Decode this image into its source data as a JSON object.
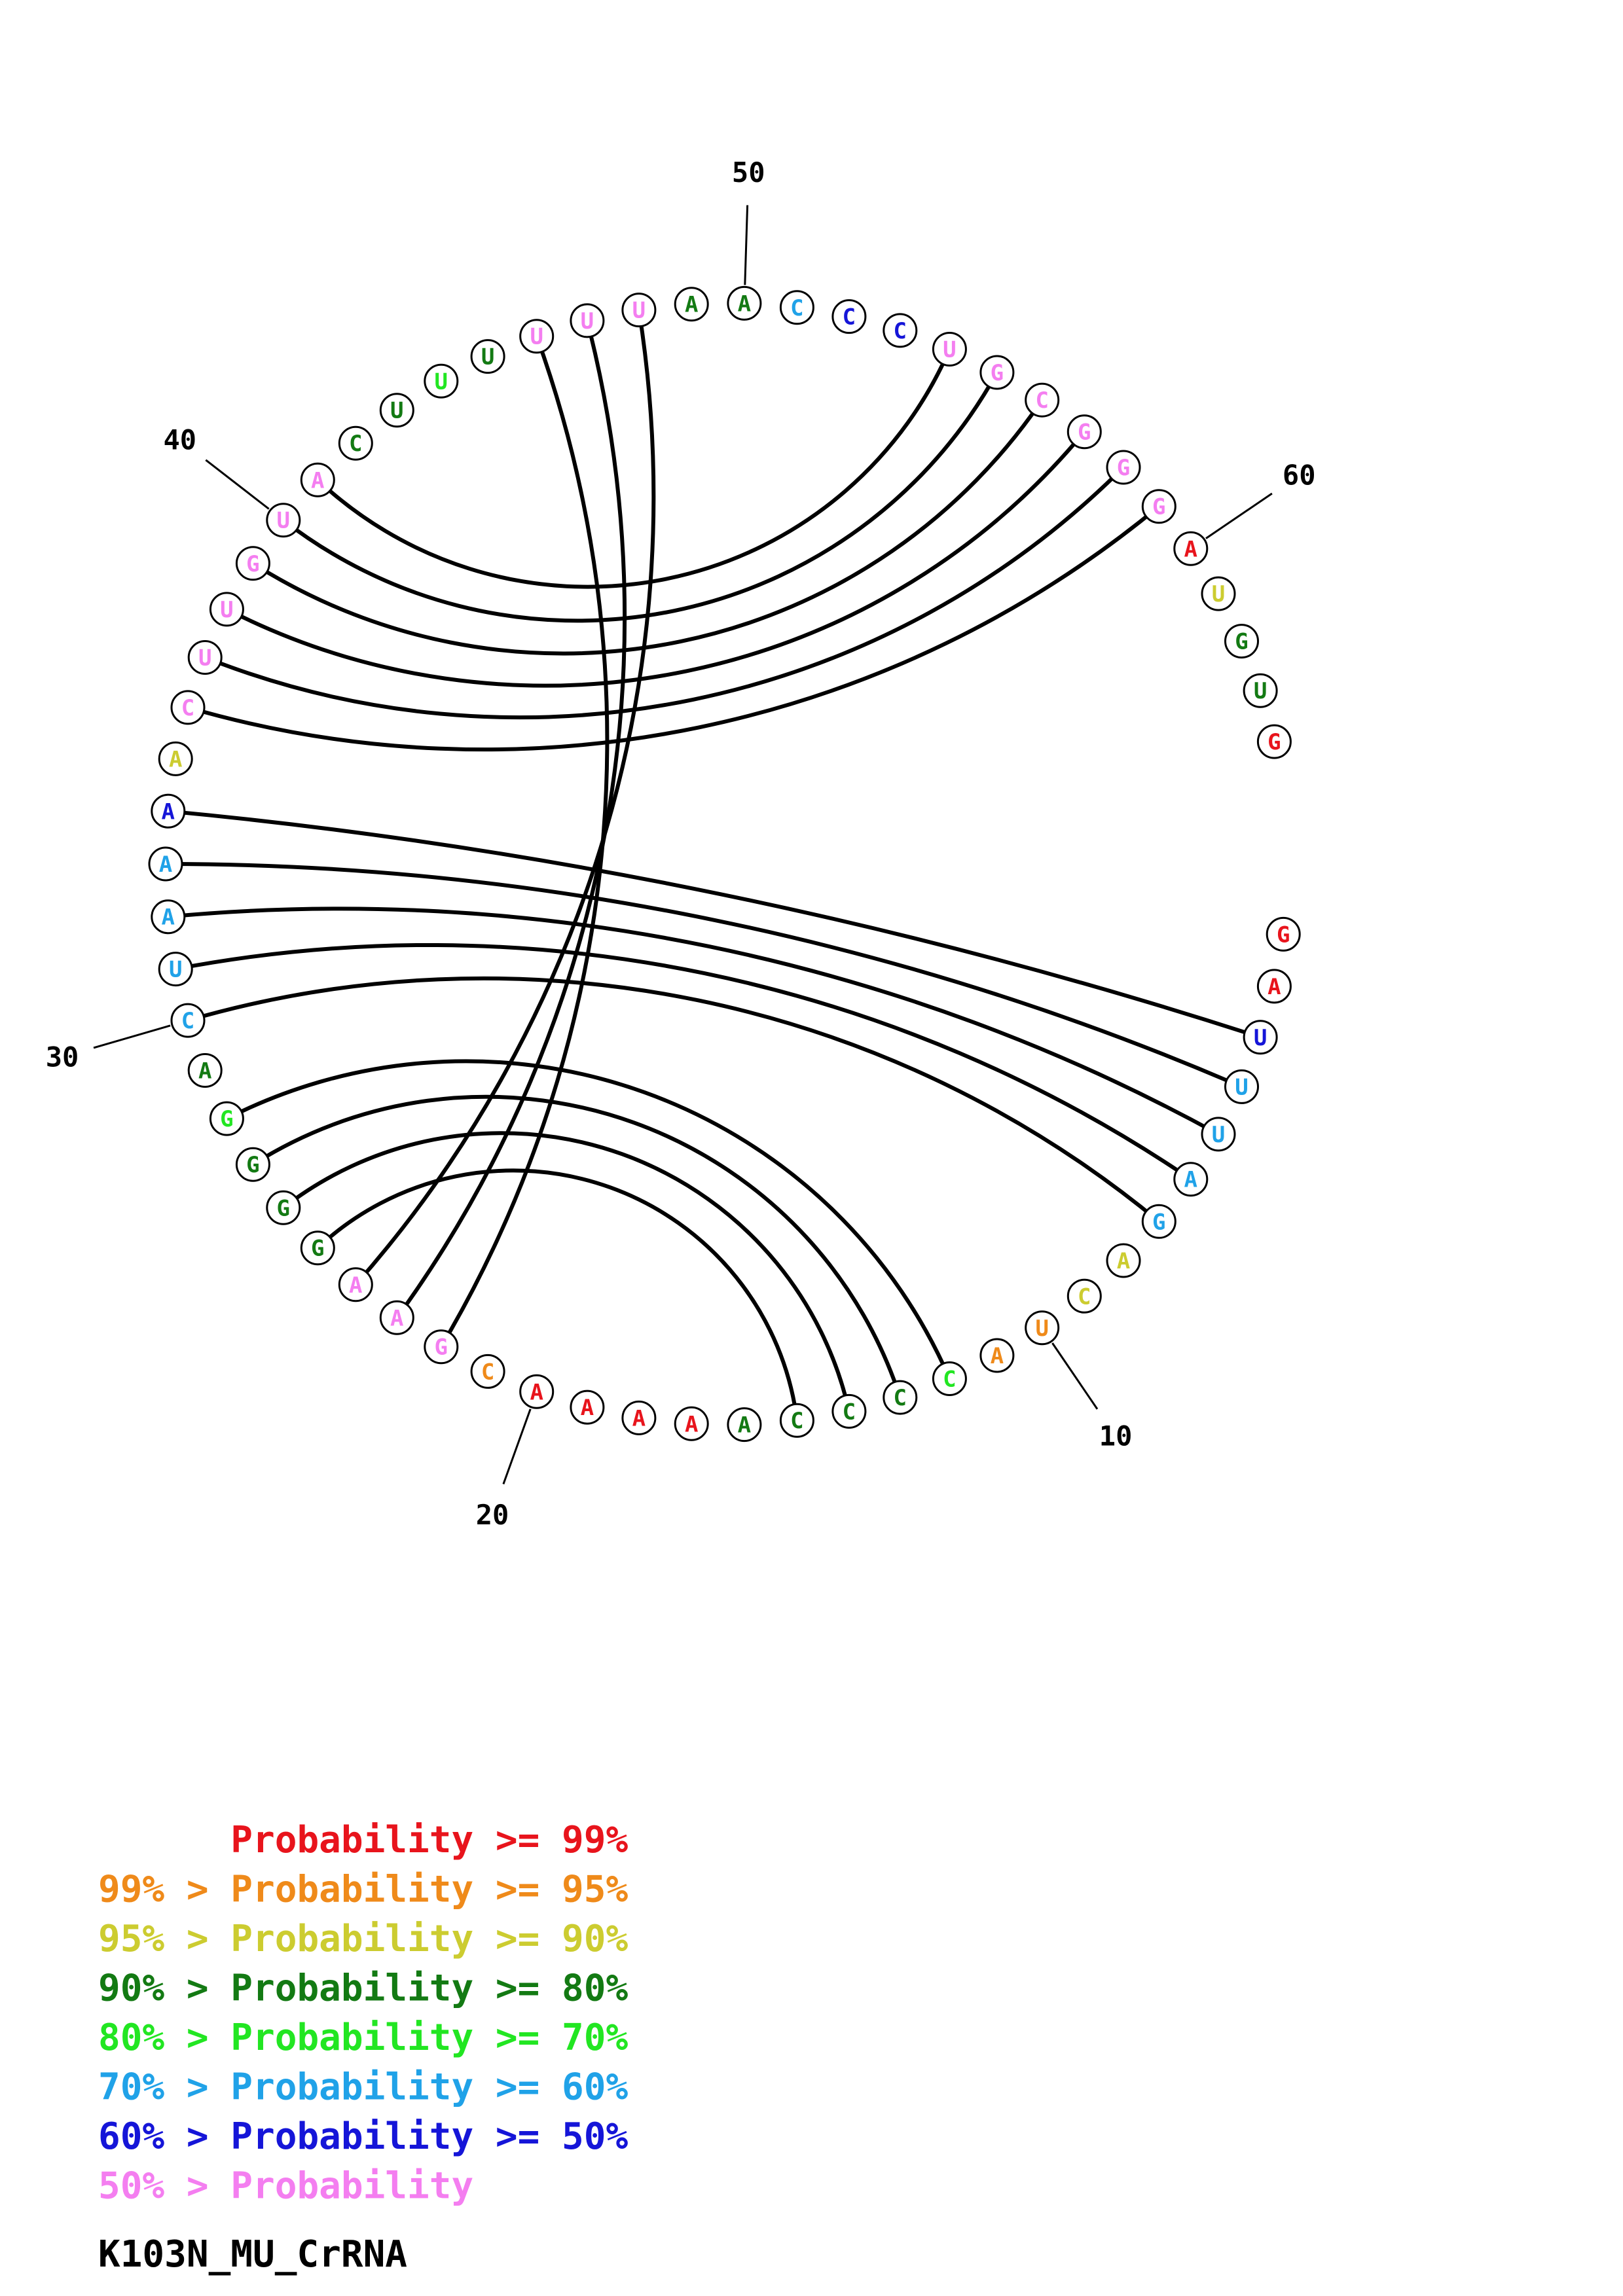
{
  "sequence_name": "K103N_MU_CrRNA",
  "colors": {
    "p99": "#e8141c",
    "p95": "#ef8a1a",
    "p90": "#cccc30",
    "p80": "#137a13",
    "p70": "#22e622",
    "p60": "#20a2e8",
    "p50": "#1515d8",
    "plow": "#f47ef0"
  },
  "nucleotides": [
    {
      "base": "G",
      "prob": "p99"
    },
    {
      "base": "A",
      "prob": "p99"
    },
    {
      "base": "U",
      "prob": "p50"
    },
    {
      "base": "U",
      "prob": "p60"
    },
    {
      "base": "U",
      "prob": "p60"
    },
    {
      "base": "A",
      "prob": "p60"
    },
    {
      "base": "G",
      "prob": "p60"
    },
    {
      "base": "A",
      "prob": "p90"
    },
    {
      "base": "C",
      "prob": "p90"
    },
    {
      "base": "U",
      "prob": "p95"
    },
    {
      "base": "A",
      "prob": "p95"
    },
    {
      "base": "C",
      "prob": "p70"
    },
    {
      "base": "C",
      "prob": "p80"
    },
    {
      "base": "C",
      "prob": "p80"
    },
    {
      "base": "C",
      "prob": "p80"
    },
    {
      "base": "A",
      "prob": "p80"
    },
    {
      "base": "A",
      "prob": "p99"
    },
    {
      "base": "A",
      "prob": "p99"
    },
    {
      "base": "A",
      "prob": "p99"
    },
    {
      "base": "A",
      "prob": "p99"
    },
    {
      "base": "C",
      "prob": "p95"
    },
    {
      "base": "G",
      "prob": "plow"
    },
    {
      "base": "A",
      "prob": "plow"
    },
    {
      "base": "A",
      "prob": "plow"
    },
    {
      "base": "G",
      "prob": "p80"
    },
    {
      "base": "G",
      "prob": "p80"
    },
    {
      "base": "G",
      "prob": "p80"
    },
    {
      "base": "G",
      "prob": "p70"
    },
    {
      "base": "A",
      "prob": "p80"
    },
    {
      "base": "C",
      "prob": "p60"
    },
    {
      "base": "U",
      "prob": "p60"
    },
    {
      "base": "A",
      "prob": "p60"
    },
    {
      "base": "A",
      "prob": "p60"
    },
    {
      "base": "A",
      "prob": "p50"
    },
    {
      "base": "A",
      "prob": "p90"
    },
    {
      "base": "C",
      "prob": "plow"
    },
    {
      "base": "U",
      "prob": "plow"
    },
    {
      "base": "U",
      "prob": "plow"
    },
    {
      "base": "G",
      "prob": "plow"
    },
    {
      "base": "U",
      "prob": "plow"
    },
    {
      "base": "A",
      "prob": "plow"
    },
    {
      "base": "C",
      "prob": "p80"
    },
    {
      "base": "U",
      "prob": "p80"
    },
    {
      "base": "U",
      "prob": "p70"
    },
    {
      "base": "U",
      "prob": "p80"
    },
    {
      "base": "U",
      "prob": "plow"
    },
    {
      "base": "U",
      "prob": "plow"
    },
    {
      "base": "U",
      "prob": "plow"
    },
    {
      "base": "A",
      "prob": "p80"
    },
    {
      "base": "A",
      "prob": "p80"
    },
    {
      "base": "C",
      "prob": "p60"
    },
    {
      "base": "C",
      "prob": "p50"
    },
    {
      "base": "C",
      "prob": "p50"
    },
    {
      "base": "U",
      "prob": "plow"
    },
    {
      "base": "G",
      "prob": "plow"
    },
    {
      "base": "C",
      "prob": "plow"
    },
    {
      "base": "G",
      "prob": "plow"
    },
    {
      "base": "G",
      "prob": "plow"
    },
    {
      "base": "G",
      "prob": "plow"
    },
    {
      "base": "A",
      "prob": "p99"
    },
    {
      "base": "U",
      "prob": "p90"
    },
    {
      "base": "G",
      "prob": "p80"
    },
    {
      "base": "U",
      "prob": "p80"
    },
    {
      "base": "G",
      "prob": "p99"
    }
  ],
  "base_pairs": [
    [
      3,
      34
    ],
    [
      4,
      33
    ],
    [
      5,
      32
    ],
    [
      6,
      31
    ],
    [
      7,
      30
    ],
    [
      12,
      28
    ],
    [
      13,
      27
    ],
    [
      14,
      26
    ],
    [
      15,
      25
    ],
    [
      22,
      46
    ],
    [
      23,
      47
    ],
    [
      24,
      48
    ],
    [
      36,
      59
    ],
    [
      37,
      58
    ],
    [
      38,
      57
    ],
    [
      39,
      56
    ],
    [
      40,
      55
    ],
    [
      41,
      54
    ]
  ],
  "position_labels": [
    {
      "index": 10,
      "text": "10"
    },
    {
      "index": 20,
      "text": "20"
    },
    {
      "index": 30,
      "text": "30"
    },
    {
      "index": 40,
      "text": "40"
    },
    {
      "index": 50,
      "text": "50"
    },
    {
      "index": 60,
      "text": "60"
    }
  ],
  "legend": [
    {
      "prefix": "",
      "label": "Probability",
      "suffix": ">= 99%",
      "color": "p99"
    },
    {
      "prefix": "99% >",
      "label": "Probability",
      "suffix": ">= 95%",
      "color": "p95"
    },
    {
      "prefix": "95% >",
      "label": "Probability",
      "suffix": ">= 90%",
      "color": "p90"
    },
    {
      "prefix": "90% >",
      "label": "Probability",
      "suffix": ">= 80%",
      "color": "p80"
    },
    {
      "prefix": "80% >",
      "label": "Probability",
      "suffix": ">= 70%",
      "color": "p70"
    },
    {
      "prefix": "70% >",
      "label": "Probability",
      "suffix": ">= 60%",
      "color": "p60"
    },
    {
      "prefix": "60% >",
      "label": "Probability",
      "suffix": ">= 50%",
      "color": "p50"
    },
    {
      "prefix": "50% >",
      "label": "Probability",
      "suffix": "",
      "color": "plow"
    }
  ]
}
